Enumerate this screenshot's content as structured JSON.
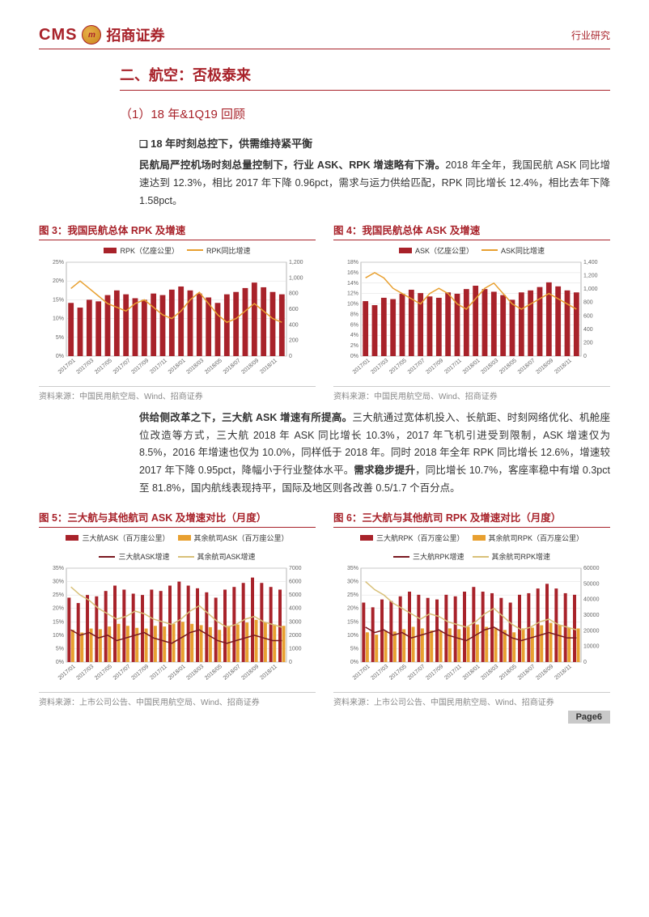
{
  "header": {
    "logo_cms": "CMS",
    "logo_symbol": "m",
    "logo_zh": "招商证券",
    "right": "行业研究"
  },
  "section": {
    "heading": "二、航空：否极泰来",
    "sub": "（1）18 年&1Q19 回顾",
    "bullet1": "18 年时刻总控下，供需维持紧平衡",
    "para1a": "民航局严控机场时刻总量控制下，行业 ASK、RPK 增速略有下滑。",
    "para1b": "2018 年全年，我国民航 ASK 同比增速达到 12.3%，相比 2017 年下降 0.96pct，需求与运力供给匹配，RPK 同比增长 12.4%，相比去年下降 1.58pct。",
    "para2a": "供给侧改革之下，三大航 ASK 增速有所提高。",
    "para2b": "三大航通过宽体机投入、长航距、时刻网络优化、机舱座位改造等方式，三大航 2018 年 ASK 同比增长 10.3%，2017 年飞机引进受到限制，ASK 增速仅为 8.5%，2016 年增速也仅为 10.0%，同样低于 2018 年。同时 2018 年全年 RPK 同比增长 12.6%，增速较 2017 年下降 0.95pct，降幅小于行业整体水平。",
    "para2c": "需求稳步提升",
    "para2d": "，同比增长 10.7%，客座率稳中有增 0.3pct 至 81.8%，国内航线表现持平，国际及地区则各改善 0.5/1.7 个百分点。"
  },
  "charts": {
    "c3": {
      "title": "图 3：我国民航总体 RPK 及增速",
      "leg_bar": "RPK（亿座公里）",
      "leg_line": "RPK同比增速",
      "bar_color": "#a8222a",
      "line_color": "#e8a030",
      "categories": [
        "2017/01",
        "2017/03",
        "2017/05",
        "2017/07",
        "2017/09",
        "2017/11",
        "2018/01",
        "2018/03",
        "2018/05",
        "2018/07",
        "2018/09",
        "2018/11"
      ],
      "y_left_ticks": [
        "0%",
        "5%",
        "10%",
        "15%",
        "20%",
        "25%"
      ],
      "y_right_ticks": [
        "0",
        "200",
        "400",
        "600",
        "800",
        "1,000",
        "1,200"
      ],
      "bars": [
        680,
        620,
        720,
        700,
        780,
        840,
        790,
        740,
        720,
        800,
        780,
        850,
        890,
        840,
        800,
        750,
        680,
        790,
        820,
        870,
        940,
        880,
        820,
        790
      ],
      "line": [
        18,
        20,
        18,
        16,
        14,
        13,
        12,
        14,
        15,
        13,
        11,
        10,
        12,
        15,
        17,
        14,
        11,
        9,
        10,
        12,
        14,
        12,
        10,
        9
      ],
      "source": "资料来源：中国民用航空局、Wind、招商证券"
    },
    "c4": {
      "title": "图 4：我国民航总体 ASK 及增速",
      "leg_bar": "ASK（亿座公里）",
      "leg_line": "ASK同比增速",
      "bar_color": "#a8222a",
      "line_color": "#e8a030",
      "categories": [
        "2017/01",
        "2017/03",
        "2017/05",
        "2017/07",
        "2017/09",
        "2017/11",
        "2018/01",
        "2018/03",
        "2018/05",
        "2018/07",
        "2018/09",
        "2018/11"
      ],
      "y_left_ticks": [
        "0%",
        "2%",
        "4%",
        "6%",
        "8%",
        "10%",
        "12%",
        "14%",
        "16%",
        "18%"
      ],
      "y_right_ticks": [
        "0",
        "200",
        "400",
        "600",
        "800",
        "1,000",
        "1,200",
        "1,400"
      ],
      "bars": [
        820,
        760,
        870,
        850,
        930,
        990,
        940,
        890,
        870,
        950,
        930,
        1000,
        1050,
        1000,
        960,
        910,
        840,
        950,
        980,
        1030,
        1100,
        1040,
        980,
        950
      ],
      "line": [
        15,
        16,
        15,
        13,
        12,
        11,
        10,
        12,
        13,
        12,
        10,
        9,
        11,
        13,
        14,
        12,
        10,
        9,
        10,
        11,
        12,
        11,
        10,
        9
      ],
      "source": "资料来源：中国民用航空局、Wind、招商证券"
    },
    "c5": {
      "title": "图 5：三大航与其他航司 ASK 及增速对比（月度）",
      "leg_bar1": "三大航ASK（百万座公里）",
      "leg_bar2": "其余航司ASK（百万座公里）",
      "leg_line1": "三大航ASK增速",
      "leg_line2": "其余航司ASK增速",
      "bar1_color": "#a8222a",
      "bar2_color": "#e8a030",
      "line1_color": "#7a1820",
      "line2_color": "#d8c078",
      "categories": [
        "2017/01",
        "2017/03",
        "2017/05",
        "2017/07",
        "2017/09",
        "2017/11",
        "2018/01",
        "2018/03",
        "2018/05",
        "2018/07",
        "2018/09",
        "2018/11"
      ],
      "y_left_ticks": [
        "0%",
        "5%",
        "10%",
        "15%",
        "20%",
        "25%",
        "30%",
        "35%"
      ],
      "y_right_ticks": [
        "0",
        "1000",
        "2000",
        "3000",
        "4000",
        "5000",
        "6000",
        "7000"
      ],
      "bars1": [
        4800,
        4400,
        5000,
        4900,
        5300,
        5700,
        5400,
        5100,
        5000,
        5400,
        5300,
        5700,
        6000,
        5700,
        5500,
        5200,
        4800,
        5400,
        5600,
        5900,
        6300,
        5900,
        5600,
        5400
      ],
      "bars2": [
        2400,
        2200,
        2500,
        2450,
        2650,
        2850,
        2700,
        2550,
        2500,
        2700,
        2650,
        2850,
        3000,
        2850,
        2750,
        2600,
        2400,
        2700,
        2800,
        2950,
        3150,
        2950,
        2800,
        2700
      ],
      "line1": [
        12,
        10,
        11,
        9,
        10,
        8,
        9,
        10,
        11,
        9,
        8,
        7,
        9,
        11,
        12,
        10,
        8,
        7,
        8,
        9,
        10,
        9,
        8,
        8
      ],
      "line2": [
        28,
        25,
        23,
        20,
        18,
        16,
        17,
        19,
        18,
        16,
        15,
        14,
        16,
        19,
        21,
        18,
        15,
        13,
        14,
        16,
        17,
        15,
        14,
        13
      ],
      "source": "资料来源：上市公司公告、中国民用航空局、Wind、招商证券"
    },
    "c6": {
      "title": "图 6：三大航与其他航司 RPK 及增速对比（月度）",
      "leg_bar1": "三大航RPK（百万座公里）",
      "leg_bar2": "其余航司RPK（百万座公里）",
      "leg_line1": "三大航RPK增速",
      "leg_line2": "其余航司RPK增速",
      "bar1_color": "#a8222a",
      "bar2_color": "#e8a030",
      "line1_color": "#7a1820",
      "line2_color": "#d8c078",
      "categories": [
        "2017/01",
        "2017/03",
        "2017/05",
        "2017/07",
        "2017/09",
        "2017/11",
        "2018/01",
        "2018/03",
        "2018/05",
        "2018/07",
        "2018/09",
        "2018/11"
      ],
      "y_left_ticks": [
        "0%",
        "5%",
        "10%",
        "15%",
        "20%",
        "25%",
        "30%",
        "35%"
      ],
      "y_right_ticks": [
        "0",
        "10000",
        "20000",
        "30000",
        "40000",
        "50000",
        "60000"
      ],
      "bars1": [
        38000,
        35000,
        40000,
        39000,
        42000,
        45000,
        43000,
        41000,
        40000,
        43000,
        42000,
        45000,
        48000,
        45000,
        44000,
        41000,
        38000,
        43000,
        44000,
        47000,
        50000,
        47000,
        44000,
        43000
      ],
      "bars2": [
        19000,
        17500,
        20000,
        19500,
        21000,
        22500,
        21500,
        20200,
        20000,
        21500,
        21000,
        22500,
        24000,
        22500,
        22000,
        20500,
        19000,
        21500,
        22000,
        23500,
        25000,
        23500,
        22000,
        21500
      ],
      "line1": [
        13,
        11,
        12,
        10,
        11,
        9,
        10,
        11,
        12,
        10,
        9,
        8,
        10,
        12,
        13,
        11,
        9,
        8,
        9,
        10,
        11,
        10,
        9,
        9
      ],
      "line2": [
        30,
        27,
        25,
        22,
        20,
        18,
        16,
        18,
        17,
        15,
        14,
        13,
        15,
        18,
        20,
        17,
        14,
        12,
        13,
        15,
        16,
        14,
        13,
        12
      ],
      "source": "资料来源：上市公司公告、中国民用航空局、Wind、招商证券"
    }
  },
  "footer": {
    "page": "Page6"
  }
}
